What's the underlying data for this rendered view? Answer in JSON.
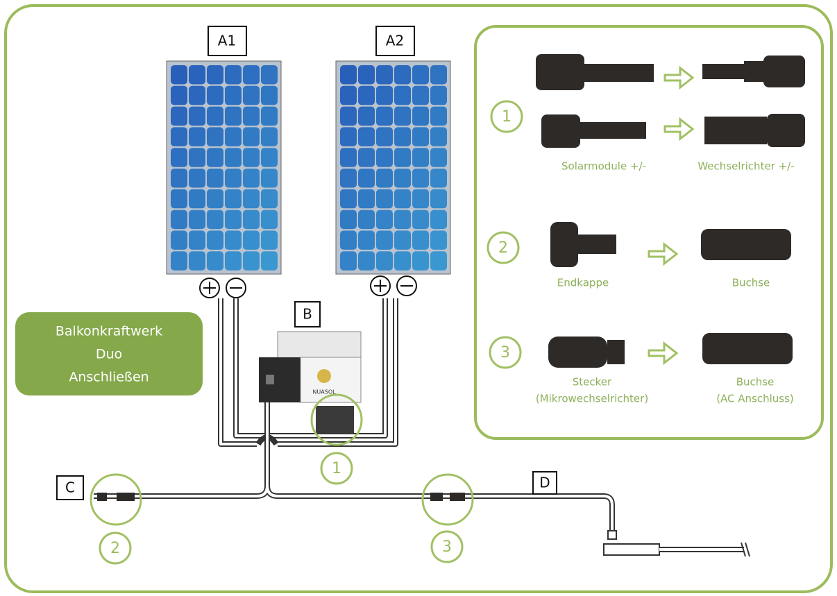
{
  "title": {
    "lines": [
      "Balkonkraftwerk",
      "Duo",
      "Anschließen"
    ]
  },
  "panels": [
    {
      "label": "A1"
    },
    {
      "label": "A2"
    }
  ],
  "inverter": {
    "label": "B",
    "brand": "NUASOL"
  },
  "cable_end": {
    "label": "C"
  },
  "grid_connection": {
    "label": "D"
  },
  "diagram_markers": [
    "1",
    "2",
    "3"
  ],
  "legend": {
    "items": [
      {
        "number": "1",
        "from": [
          "Solarmodule +/-"
        ],
        "to": [
          "Wechselrichter +/-"
        ]
      },
      {
        "number": "2",
        "from": [
          "Endkappe"
        ],
        "to": [
          "Buchse"
        ]
      },
      {
        "number": "3",
        "from": [
          "Stecker",
          "(Mikrowechselrichter)"
        ],
        "to": [
          "Buchse",
          "(AC Anschluss)"
        ]
      }
    ]
  }
}
